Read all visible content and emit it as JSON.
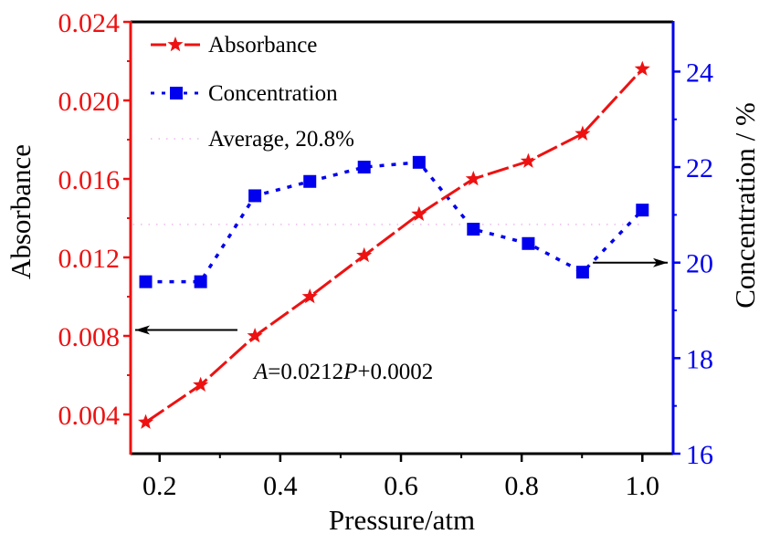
{
  "chart_data": {
    "type": "line",
    "title": "",
    "xlabel": "Pressure/atm",
    "ylabel": "Absorbance",
    "y2label": "Concentration / %",
    "xlim": [
      0.152,
      1.051
    ],
    "ylim": [
      0.002,
      0.024
    ],
    "y2lim": [
      16,
      25.04
    ],
    "x_ticks": [
      0.2,
      0.4,
      0.6,
      0.8,
      1.0
    ],
    "x_tick_labels": [
      "0.2",
      "0.4",
      "0.6",
      "0.8",
      "1.0"
    ],
    "x_minor_ticks": [
      0.3,
      0.5,
      0.7,
      0.9
    ],
    "y_ticks": [
      0.004,
      0.008,
      0.012,
      0.016,
      0.02,
      0.024
    ],
    "y_tick_labels": [
      "0.004",
      "0.008",
      "0.012",
      "0.016",
      "0.020",
      "0.024"
    ],
    "y_minor_ticks": [
      0.006,
      0.01,
      0.014,
      0.018,
      0.022
    ],
    "y2_ticks": [
      16,
      18,
      20,
      22,
      24
    ],
    "y2_tick_labels": [
      "16",
      "18",
      "20",
      "22",
      "24"
    ],
    "y2_minor_ticks": [
      17,
      19,
      21,
      23
    ],
    "grid": false,
    "x": [
      0.177,
      0.268,
      0.358,
      0.449,
      0.539,
      0.63,
      0.72,
      0.811,
      0.901,
      1.0
    ],
    "series": [
      {
        "name": "Absorbance",
        "axis": "left",
        "color": "#ee1111",
        "marker": "star",
        "linestyle": "dashed",
        "values": [
          0.0036,
          0.0055,
          0.008,
          0.01,
          0.0121,
          0.0142,
          0.016,
          0.0169,
          0.0183,
          0.0216
        ]
      },
      {
        "name": "Concentration",
        "axis": "right",
        "color": "#0000ee",
        "marker": "square",
        "linestyle": "dotted",
        "values": [
          19.6,
          19.6,
          21.4,
          21.7,
          22.0,
          22.1,
          20.7,
          20.4,
          19.8,
          21.1
        ]
      },
      {
        "name": "Average, 20.8%",
        "axis": "right",
        "color": "#f0c8f0",
        "marker": "none",
        "linestyle": "dotted",
        "value": 20.8,
        "x_range": [
          0.177,
          1.0
        ]
      }
    ],
    "legend": {
      "placement": "top-left",
      "entries": [
        "Absorbance",
        "Concentration",
        "Average, 20.8%"
      ]
    },
    "annotations": [
      {
        "text_parts": [
          {
            "text": "A",
            "italic": true
          },
          {
            "text": "=0.0212",
            "italic": false
          },
          {
            "text": "P",
            "italic": true
          },
          {
            "text": "+0.0002",
            "italic": false
          }
        ],
        "full_text": "A=0.0212P+0.0002",
        "arrow": "left",
        "arrow_points_to": "left axis",
        "at": {
          "x": 0.362,
          "y": 0.0083
        }
      },
      {
        "text": "",
        "arrow": "right",
        "arrow_points_to": "right axis",
        "at": {
          "x": 0.918,
          "y2": 20.0
        }
      }
    ],
    "axis_colors": {
      "left": "#ee1111",
      "right": "#0000ee",
      "frame": "#000000"
    }
  }
}
